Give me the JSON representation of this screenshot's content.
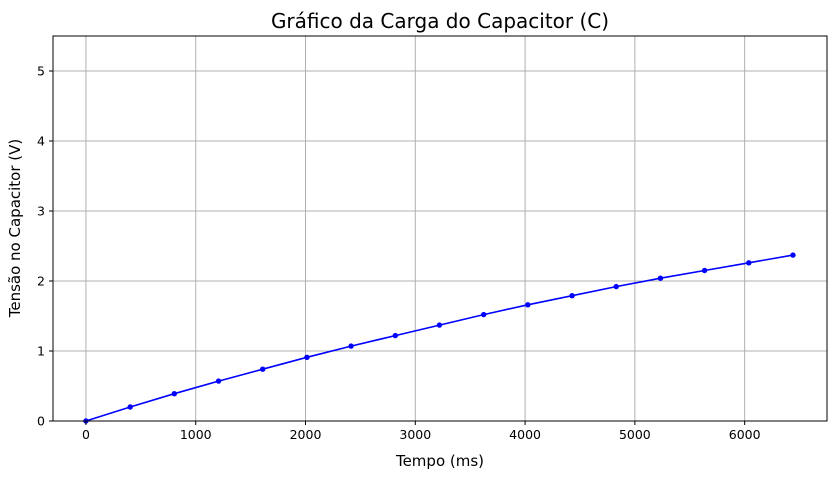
{
  "chart_data": {
    "type": "line",
    "title": "Gráfico da Carga do Capacitor (C)",
    "xlabel": "Tempo (ms)",
    "ylabel": "Tensão no Capacitor (V)",
    "xlim": [
      -300,
      6750
    ],
    "ylim": [
      0,
      5.5
    ],
    "xticks": [
      0,
      1000,
      2000,
      3000,
      4000,
      5000,
      6000
    ],
    "yticks": [
      0,
      1,
      2,
      3,
      4,
      5
    ],
    "grid": true,
    "colors": {
      "line": "#0000ff",
      "grid": "#b0b0b0",
      "frame": "#000000"
    },
    "series": [
      {
        "x": [
          0,
          403,
          805,
          1208,
          1610,
          2013,
          2415,
          2818,
          3220,
          3623,
          4025,
          4428,
          4830,
          5233,
          5635,
          6038,
          6440
        ],
        "y": [
          0.0,
          0.2,
          0.39,
          0.57,
          0.74,
          0.91,
          1.07,
          1.22,
          1.37,
          1.52,
          1.66,
          1.79,
          1.92,
          2.04,
          2.15,
          2.26,
          2.37
        ]
      }
    ]
  }
}
